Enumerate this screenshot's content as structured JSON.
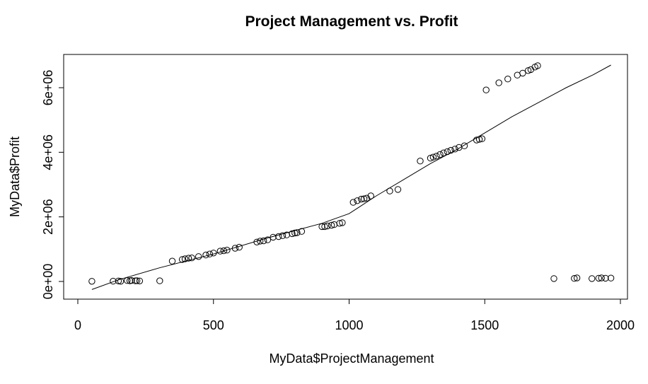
{
  "chart_data": {
    "type": "scatter",
    "title": "Project Management vs. Profit",
    "xlabel": "MyData$ProjectManagement",
    "ylabel": "MyData$Profit",
    "xlim": [
      0,
      2000
    ],
    "ylim": [
      -500000,
      7000000
    ],
    "x_ticks": [
      0,
      500,
      1000,
      1500,
      2000
    ],
    "x_tick_labels": [
      "0",
      "500",
      "1000",
      "1500",
      "2000"
    ],
    "y_ticks": [
      0,
      2000000,
      4000000,
      6000000
    ],
    "y_tick_labels": [
      "0e+00",
      "2e+06",
      "4e+06",
      "6e+06"
    ],
    "grid": false,
    "series": [
      {
        "points": [
          [
            52,
            5000
          ],
          [
            130,
            8000
          ],
          [
            150,
            15000
          ],
          [
            158,
            5000
          ],
          [
            182,
            28000
          ],
          [
            192,
            22000
          ],
          [
            198,
            30000
          ],
          [
            212,
            20000
          ],
          [
            218,
            25000
          ],
          [
            228,
            15000
          ],
          [
            302,
            20000
          ],
          [
            348,
            630000
          ],
          [
            385,
            680000
          ],
          [
            395,
            700000
          ],
          [
            408,
            720000
          ],
          [
            420,
            730000
          ],
          [
            445,
            770000
          ],
          [
            472,
            820000
          ],
          [
            486,
            850000
          ],
          [
            500,
            880000
          ],
          [
            525,
            940000
          ],
          [
            538,
            950000
          ],
          [
            550,
            970000
          ],
          [
            580,
            1030000
          ],
          [
            595,
            1060000
          ],
          [
            660,
            1220000
          ],
          [
            672,
            1250000
          ],
          [
            685,
            1260000
          ],
          [
            700,
            1290000
          ],
          [
            720,
            1370000
          ],
          [
            740,
            1390000
          ],
          [
            755,
            1420000
          ],
          [
            770,
            1440000
          ],
          [
            790,
            1480000
          ],
          [
            800,
            1500000
          ],
          [
            808,
            1510000
          ],
          [
            825,
            1550000
          ],
          [
            900,
            1700000
          ],
          [
            910,
            1700000
          ],
          [
            920,
            1720000
          ],
          [
            935,
            1740000
          ],
          [
            945,
            1760000
          ],
          [
            965,
            1800000
          ],
          [
            975,
            1820000
          ],
          [
            1015,
            2450000
          ],
          [
            1030,
            2500000
          ],
          [
            1045,
            2550000
          ],
          [
            1055,
            2560000
          ],
          [
            1065,
            2580000
          ],
          [
            1080,
            2650000
          ],
          [
            1150,
            2800000
          ],
          [
            1180,
            2850000
          ],
          [
            1262,
            3730000
          ],
          [
            1300,
            3820000
          ],
          [
            1310,
            3850000
          ],
          [
            1322,
            3880000
          ],
          [
            1335,
            3930000
          ],
          [
            1348,
            3980000
          ],
          [
            1362,
            4020000
          ],
          [
            1375,
            4060000
          ],
          [
            1390,
            4100000
          ],
          [
            1405,
            4150000
          ],
          [
            1425,
            4200000
          ],
          [
            1470,
            4380000
          ],
          [
            1480,
            4400000
          ],
          [
            1490,
            4420000
          ],
          [
            1505,
            5930000
          ],
          [
            1552,
            6150000
          ],
          [
            1585,
            6270000
          ],
          [
            1620,
            6390000
          ],
          [
            1640,
            6450000
          ],
          [
            1660,
            6530000
          ],
          [
            1670,
            6560000
          ],
          [
            1685,
            6640000
          ],
          [
            1695,
            6680000
          ],
          [
            1755,
            90000
          ],
          [
            1830,
            95000
          ],
          [
            1840,
            110000
          ],
          [
            1895,
            90000
          ],
          [
            1920,
            100000
          ],
          [
            1930,
            110000
          ],
          [
            1945,
            100000
          ],
          [
            1965,
            105000
          ]
        ]
      }
    ],
    "smooth_line": [
      [
        52,
        -250000
      ],
      [
        150,
        50000
      ],
      [
        300,
        420000
      ],
      [
        500,
        850000
      ],
      [
        700,
        1350000
      ],
      [
        900,
        1800000
      ],
      [
        1000,
        2100000
      ],
      [
        1100,
        2650000
      ],
      [
        1200,
        3150000
      ],
      [
        1300,
        3650000
      ],
      [
        1400,
        4100000
      ],
      [
        1500,
        4600000
      ],
      [
        1600,
        5100000
      ],
      [
        1700,
        5550000
      ],
      [
        1800,
        6000000
      ],
      [
        1900,
        6400000
      ],
      [
        1965,
        6700000
      ]
    ]
  }
}
